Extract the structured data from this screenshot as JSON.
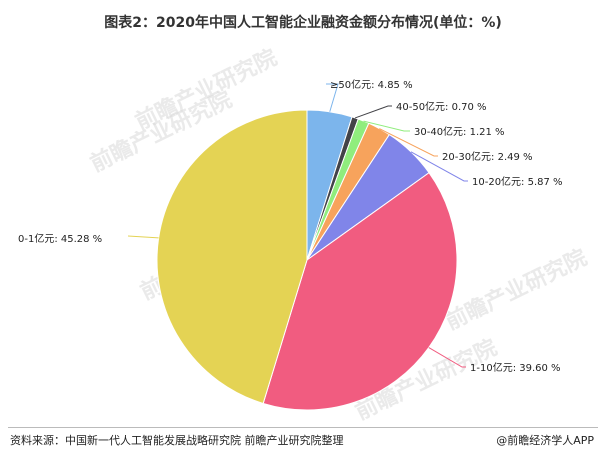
{
  "page_title": "图表2：2020年中国人工智能企业融资金额分布情况(单位：%)",
  "watermark": {
    "text": "前瞻产业研究院"
  },
  "chart_data": {
    "type": "pie",
    "title": "图表2：2020年中国人工智能企业融资金额分布情况(单位：%)",
    "slices": [
      {
        "name": "≥50亿元",
        "value": 4.85,
        "label": "≥50亿元: 4.85 %",
        "color": "#7cb5ec"
      },
      {
        "name": "40-50亿元",
        "value": 0.7,
        "label": "40-50亿元: 0.70 %",
        "color": "#434348"
      },
      {
        "name": "30-40亿元",
        "value": 1.21,
        "label": "30-40亿元: 1.21 %",
        "color": "#90ed7d"
      },
      {
        "name": "20-30亿元",
        "value": 2.49,
        "label": "20-30亿元: 2.49 %",
        "color": "#f7a35c"
      },
      {
        "name": "10-20亿元",
        "value": 5.87,
        "label": "10-20亿元: 5.87 %",
        "color": "#8085e9"
      },
      {
        "name": "1-10亿元",
        "value": 39.6,
        "label": "1-10亿元: 39.60 %",
        "color": "#f15c80"
      },
      {
        "name": "0-1亿元",
        "value": 45.28,
        "label": "0-1亿元: 45.28 %",
        "color": "#e4d354"
      }
    ]
  },
  "footer": {
    "source": "资料来源：中国新一代人工智能发展战略研究院 前瞻产业研究院整理",
    "brand": "@前瞻经济学人APP"
  }
}
